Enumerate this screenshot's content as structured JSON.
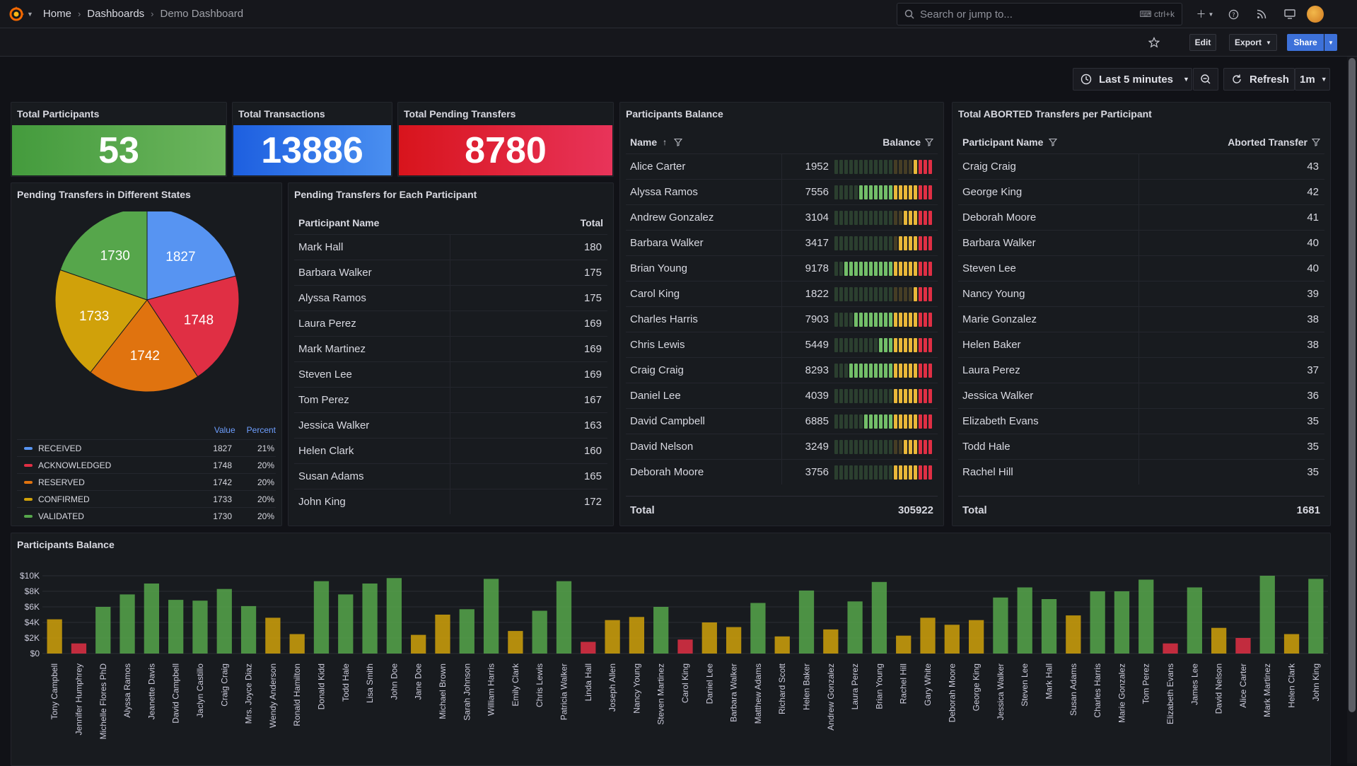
{
  "nav": {
    "breadcrumb": [
      "Home",
      "Dashboards",
      "Demo Dashboard"
    ],
    "search_placeholder": "Search or jump to...",
    "search_shortcut": "ctrl+k"
  },
  "toolbar": {
    "edit": "Edit",
    "export": "Export",
    "share": "Share"
  },
  "timepicker": {
    "range": "Last 5 minutes",
    "refresh": "Refresh",
    "interval": "1m"
  },
  "stats": [
    {
      "title": "Total Participants",
      "value": "53",
      "color": "#56a64b"
    },
    {
      "title": "Total Transactions",
      "value": "13886",
      "color": "#3274d9"
    },
    {
      "title": "Total Pending Transfers",
      "value": "8780",
      "color": "#e02f44"
    }
  ],
  "pie": {
    "title": "Pending Transfers in Different States",
    "col_value": "Value",
    "col_percent": "Percent",
    "slices": [
      {
        "label": "RECEIVED",
        "value": 1827,
        "percent": "21%",
        "color": "#5794f2"
      },
      {
        "label": "ACKNOWLEDGED",
        "value": 1748,
        "percent": "20%",
        "color": "#e02f44"
      },
      {
        "label": "RESERVED",
        "value": 1742,
        "percent": "20%",
        "color": "#e0730f"
      },
      {
        "label": "CONFIRMED",
        "value": 1733,
        "percent": "20%",
        "color": "#d0a10a"
      },
      {
        "label": "VALIDATED",
        "value": 1730,
        "percent": "20%",
        "color": "#56a64b"
      }
    ]
  },
  "pending": {
    "title": "Pending Transfers for Each Participant",
    "col_name": "Participant Name",
    "col_total": "Total",
    "rows": [
      [
        "Mark Hall",
        "180"
      ],
      [
        "Barbara Walker",
        "175"
      ],
      [
        "Alyssa Ramos",
        "175"
      ],
      [
        "Laura Perez",
        "169"
      ],
      [
        "Mark Martinez",
        "169"
      ],
      [
        "Steven Lee",
        "169"
      ],
      [
        "Tom Perez",
        "167"
      ],
      [
        "Jessica Walker",
        "163"
      ],
      [
        "Helen Clark",
        "160"
      ],
      [
        "Susan Adams",
        "165"
      ],
      [
        "John King",
        "172"
      ]
    ]
  },
  "balance": {
    "title": "Participants Balance",
    "col_name": "Name",
    "col_balance": "Balance",
    "total_label": "Total",
    "total": "305922",
    "rows": [
      [
        "Alice Carter",
        "1952"
      ],
      [
        "Alyssa Ramos",
        "7556"
      ],
      [
        "Andrew Gonzalez",
        "3104"
      ],
      [
        "Barbara Walker",
        "3417"
      ],
      [
        "Brian Young",
        "9178"
      ],
      [
        "Carol King",
        "1822"
      ],
      [
        "Charles Harris",
        "7903"
      ],
      [
        "Chris Lewis",
        "5449"
      ],
      [
        "Craig Craig",
        "8293"
      ],
      [
        "Daniel Lee",
        "4039"
      ],
      [
        "David Campbell",
        "6885"
      ],
      [
        "David Nelson",
        "3249"
      ],
      [
        "Deborah Moore",
        "3756"
      ]
    ]
  },
  "aborted": {
    "title": "Total ABORTED Transfers per Participant",
    "col_name": "Participant Name",
    "col_value": "Aborted Transfer",
    "total_label": "Total",
    "total": "1681",
    "rows": [
      [
        "Craig Craig",
        "43"
      ],
      [
        "George King",
        "42"
      ],
      [
        "Deborah Moore",
        "41"
      ],
      [
        "Barbara Walker",
        "40"
      ],
      [
        "Steven Lee",
        "40"
      ],
      [
        "Nancy Young",
        "39"
      ],
      [
        "Marie Gonzalez",
        "38"
      ],
      [
        "Helen Baker",
        "38"
      ],
      [
        "Laura Perez",
        "37"
      ],
      [
        "Jessica Walker",
        "36"
      ],
      [
        "Elizabeth Evans",
        "35"
      ],
      [
        "Todd Hale",
        "35"
      ],
      [
        "Rachel Hill",
        "35"
      ]
    ]
  },
  "chart_data": {
    "type": "bar",
    "title": "Participants Balance",
    "ylim": [
      0,
      10000
    ],
    "yticks": [
      "$0",
      "$2K",
      "$4K",
      "$6K",
      "$8K",
      "$10K"
    ],
    "categories": [
      "Tony Campbell",
      "Jennifer Humphrey",
      "Michelle Flores PhD",
      "Alyssa Ramos",
      "Jeanette Davis",
      "David Campbell",
      "Jaclyn Castillo",
      "Craig Craig",
      "Mrs. Joyce Diaz",
      "Wendy Anderson",
      "Ronald Hamilton",
      "Donald Kidd",
      "Todd Hale",
      "Lisa Smith",
      "John Doe",
      "Jane Doe",
      "Michael Brown",
      "Sarah Johnson",
      "William Harris",
      "Emily Clark",
      "Chris Lewis",
      "Patricia Walker",
      "Linda Hall",
      "Joseph Allen",
      "Nancy Young",
      "Steven Martinez",
      "Carol King",
      "Daniel Lee",
      "Barbara Walker",
      "Matthew Adams",
      "Richard Scott",
      "Helen Baker",
      "Andrew Gonzalez",
      "Laura Perez",
      "Brian Young",
      "Rachel Hill",
      "Gary White",
      "Deborah Moore",
      "George King",
      "Jessica Walker",
      "Steven Lee",
      "Mark Hall",
      "Susan Adams",
      "Charles Harris",
      "Marie Gonzalez",
      "Tom Perez",
      "Elizabeth Evans",
      "James Lee",
      "David Nelson",
      "Alice Carter",
      "Mark Martinez",
      "Helen Clark",
      "John King"
    ],
    "values": [
      4400,
      1300,
      6000,
      7600,
      9000,
      6900,
      6800,
      8300,
      6100,
      4600,
      2500,
      9300,
      7600,
      9000,
      9700,
      2400,
      5000,
      5700,
      9600,
      2900,
      5500,
      9300,
      1500,
      4300,
      4700,
      6000,
      1800,
      4000,
      3400,
      6500,
      2200,
      8100,
      3100,
      6700,
      9200,
      2300,
      4600,
      3700,
      4300,
      7200,
      8500,
      7000,
      4900,
      8000,
      8000,
      9500,
      1300,
      8500,
      3300,
      2000,
      10000,
      2500,
      9600
    ],
    "colors": {
      "high": "#56a64b",
      "mid": "#d0a10a",
      "low": "#e02f44"
    }
  }
}
